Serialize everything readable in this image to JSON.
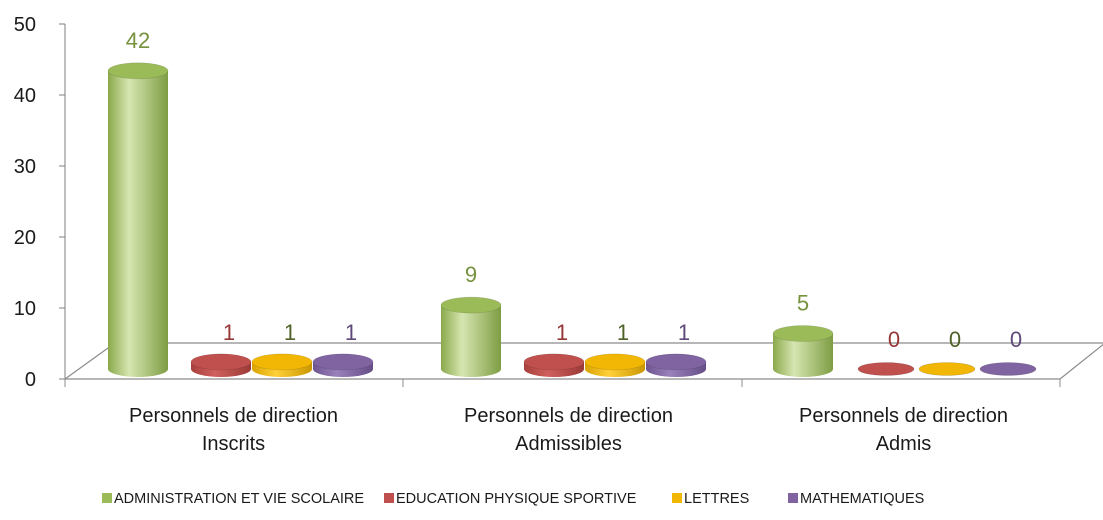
{
  "chart_data": {
    "type": "bar",
    "three_d": true,
    "bar_shape": "cylinder",
    "categories": [
      [
        "Personnels de direction",
        "Inscrits"
      ],
      [
        "Personnels de direction",
        "Admissibles"
      ],
      [
        "Personnels de direction",
        "Admis"
      ]
    ],
    "series": [
      {
        "name": "ADMINISTRATION ET VIE SCOLAIRE",
        "color": "#9BBB59",
        "label_color": "#76923C",
        "values": [
          42,
          9,
          5
        ]
      },
      {
        "name": "EDUCATION PHYSIQUE SPORTIVE",
        "color": "#C0504D",
        "label_color": "#953735",
        "values": [
          1,
          1,
          0
        ]
      },
      {
        "name": "LETTRES",
        "color": "#F2B705",
        "label_color": "#4F6228",
        "values": [
          1,
          1,
          0
        ]
      },
      {
        "name": "MATHEMATIQUES",
        "color": "#8064A2",
        "label_color": "#5F497A",
        "values": [
          1,
          1,
          0
        ]
      }
    ],
    "title": "",
    "xlabel": "",
    "ylabel": "",
    "ylim": [
      0,
      50
    ],
    "yticks": [
      0,
      10,
      20,
      30,
      40,
      50
    ],
    "grid": false,
    "legend_position": "bottom",
    "data_labels": true
  }
}
